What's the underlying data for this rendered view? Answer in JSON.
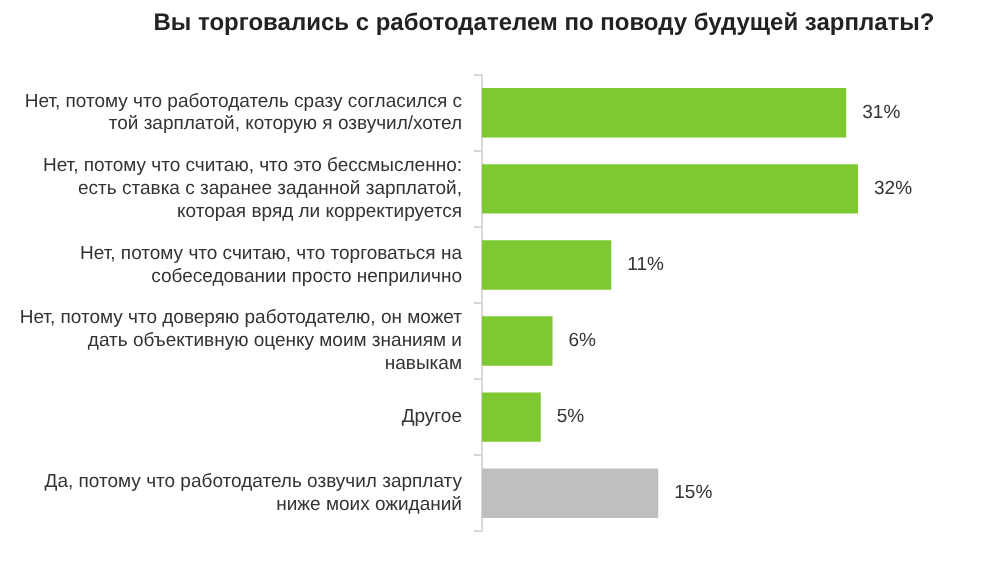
{
  "chart_data": {
    "type": "bar",
    "orientation": "horizontal",
    "title": "Вы торговались с работодателем по поводу будущей зарплаты?",
    "categories": [
      "Нет, потому что работодатель сразу согласился с той зарплатой, которую я озвучил/хотел",
      "Нет, потому что считаю, что это бессмысленно: есть ставка с заранее заданной зарплатой, которая вряд ли корректируется",
      "Нет, потому что считаю, что торговаться на собеседовании просто неприлично",
      "Нет, потому что доверяю работодателю, он может дать объективную оценку моим знаниям и навыкам",
      "Другое",
      "Да, потому что работодатель озвучил зарплату ниже моих ожиданий"
    ],
    "values": [
      31,
      32,
      11,
      6,
      5,
      15
    ],
    "colors": [
      "#7ec832",
      "#7ec832",
      "#7ec832",
      "#7ec832",
      "#7ec832",
      "#bfbfbf"
    ],
    "value_labels": [
      "31%",
      "32%",
      "11%",
      "6%",
      "5%",
      "15%"
    ]
  }
}
